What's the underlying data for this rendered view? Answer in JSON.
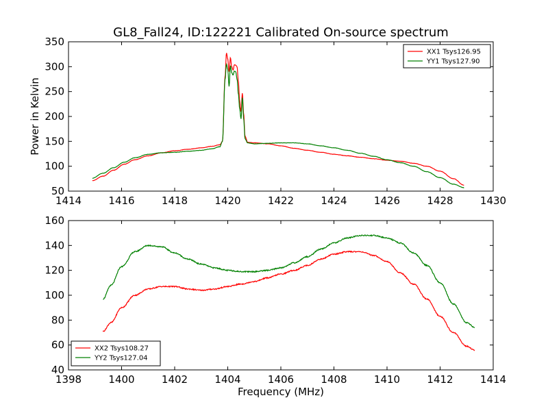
{
  "figure": {
    "title": "GL8_Fall24, ID:122221 Calibrated On-source spectrum",
    "xlabel": "Frequency (MHz)"
  },
  "chart_data": [
    {
      "type": "line",
      "ylabel": "Power in Kelvin",
      "xlim": [
        1414,
        1430
      ],
      "ylim": [
        50,
        350
      ],
      "xticks": [
        1414,
        1416,
        1418,
        1420,
        1422,
        1424,
        1426,
        1428,
        1430
      ],
      "yticks": [
        50,
        100,
        150,
        200,
        250,
        300,
        350
      ],
      "legend": "top-right",
      "grid": false,
      "series": [
        {
          "name": "XX1 Tsys126.95",
          "color": "#ff0000",
          "points": [
            [
              1414.9,
              71
            ],
            [
              1415.3,
              80
            ],
            [
              1415.7,
              92
            ],
            [
              1416.1,
              104
            ],
            [
              1416.5,
              113
            ],
            [
              1417,
              121
            ],
            [
              1417.5,
              127
            ],
            [
              1418,
              131
            ],
            [
              1418.5,
              134
            ],
            [
              1419,
              137
            ],
            [
              1419.4,
              140
            ],
            [
              1419.7,
              143
            ],
            [
              1419.8,
              150
            ],
            [
              1419.9,
              280
            ],
            [
              1419.95,
              328
            ],
            [
              1420.0,
              315
            ],
            [
              1420.05,
              290
            ],
            [
              1420.1,
              318
            ],
            [
              1420.15,
              300
            ],
            [
              1420.2,
              293
            ],
            [
              1420.25,
              304
            ],
            [
              1420.3,
              303
            ],
            [
              1420.35,
              300
            ],
            [
              1420.4,
              270
            ],
            [
              1420.45,
              230
            ],
            [
              1420.5,
              210
            ],
            [
              1420.55,
              247
            ],
            [
              1420.6,
              205
            ],
            [
              1420.65,
              160
            ],
            [
              1420.75,
              148
            ],
            [
              1421,
              147
            ],
            [
              1421.5,
              145
            ],
            [
              1422,
              141
            ],
            [
              1422.5,
              136
            ],
            [
              1423,
              132
            ],
            [
              1423.5,
              128
            ],
            [
              1424,
              124
            ],
            [
              1424.5,
              121
            ],
            [
              1425,
              118
            ],
            [
              1425.5,
              115
            ],
            [
              1426,
              112
            ],
            [
              1426.5,
              110
            ],
            [
              1427,
              106
            ],
            [
              1427.5,
              100
            ],
            [
              1428,
              90
            ],
            [
              1428.5,
              75
            ],
            [
              1428.9,
              62
            ]
          ]
        },
        {
          "name": "YY1 Tsys127.90",
          "color": "#008000",
          "points": [
            [
              1414.9,
              76
            ],
            [
              1415.3,
              86
            ],
            [
              1415.7,
              97
            ],
            [
              1416.1,
              108
            ],
            [
              1416.5,
              117
            ],
            [
              1417,
              124
            ],
            [
              1417.5,
              127
            ],
            [
              1418,
              128
            ],
            [
              1418.5,
              130
            ],
            [
              1419,
              132
            ],
            [
              1419.4,
              135
            ],
            [
              1419.7,
              139
            ],
            [
              1419.8,
              150
            ],
            [
              1419.9,
              275
            ],
            [
              1419.95,
              305
            ],
            [
              1420.0,
              295
            ],
            [
              1420.05,
              260
            ],
            [
              1420.1,
              302
            ],
            [
              1420.15,
              288
            ],
            [
              1420.2,
              283
            ],
            [
              1420.25,
              291
            ],
            [
              1420.3,
              290
            ],
            [
              1420.35,
              275
            ],
            [
              1420.4,
              245
            ],
            [
              1420.45,
              215
            ],
            [
              1420.5,
              195
            ],
            [
              1420.55,
              238
            ],
            [
              1420.6,
              195
            ],
            [
              1420.65,
              155
            ],
            [
              1420.75,
              147
            ],
            [
              1421,
              145
            ],
            [
              1421.5,
              146
            ],
            [
              1422,
              147
            ],
            [
              1422.5,
              147
            ],
            [
              1423,
              145
            ],
            [
              1423.5,
              141
            ],
            [
              1424,
              137
            ],
            [
              1424.5,
              132
            ],
            [
              1425,
              126
            ],
            [
              1425.5,
              120
            ],
            [
              1426,
              113
            ],
            [
              1426.5,
              107
            ],
            [
              1427,
              100
            ],
            [
              1427.5,
              89
            ],
            [
              1428,
              77
            ],
            [
              1428.5,
              64
            ],
            [
              1428.9,
              57
            ]
          ]
        }
      ]
    },
    {
      "type": "line",
      "ylabel": "",
      "xlim": [
        1398,
        1414
      ],
      "ylim": [
        40,
        160
      ],
      "xticks": [
        1398,
        1400,
        1402,
        1404,
        1406,
        1408,
        1410,
        1412,
        1414
      ],
      "yticks": [
        40,
        60,
        80,
        100,
        120,
        140,
        160
      ],
      "legend": "bottom-left",
      "grid": false,
      "series": [
        {
          "name": "XX2 Tsys108.27",
          "color": "#ff0000",
          "points": [
            [
              1399.3,
              71
            ],
            [
              1399.6,
              78
            ],
            [
              1400,
              90
            ],
            [
              1400.5,
              100
            ],
            [
              1401,
              105
            ],
            [
              1401.5,
              107
            ],
            [
              1402,
              107
            ],
            [
              1402.5,
              105
            ],
            [
              1403,
              104
            ],
            [
              1403.5,
              105
            ],
            [
              1404,
              107
            ],
            [
              1404.5,
              109
            ],
            [
              1405,
              111
            ],
            [
              1405.5,
              114
            ],
            [
              1406,
              117
            ],
            [
              1406.5,
              120
            ],
            [
              1407,
              124
            ],
            [
              1407.5,
              129
            ],
            [
              1408,
              133
            ],
            [
              1408.5,
              135
            ],
            [
              1409,
              135
            ],
            [
              1409.5,
              132
            ],
            [
              1410,
              127
            ],
            [
              1410.5,
              118
            ],
            [
              1411,
              109
            ],
            [
              1411.5,
              97
            ],
            [
              1412,
              83
            ],
            [
              1412.5,
              70
            ],
            [
              1413,
              59
            ],
            [
              1413.3,
              56
            ]
          ]
        },
        {
          "name": "YY2 Tsys127.04",
          "color": "#008000",
          "points": [
            [
              1399.3,
              97
            ],
            [
              1399.6,
              108
            ],
            [
              1400,
              123
            ],
            [
              1400.5,
              135
            ],
            [
              1401,
              140
            ],
            [
              1401.5,
              139
            ],
            [
              1402,
              134
            ],
            [
              1402.5,
              129
            ],
            [
              1403,
              125
            ],
            [
              1403.5,
              122
            ],
            [
              1404,
              120
            ],
            [
              1404.5,
              119
            ],
            [
              1405,
              119
            ],
            [
              1405.5,
              120
            ],
            [
              1406,
              122
            ],
            [
              1406.5,
              126
            ],
            [
              1407,
              131
            ],
            [
              1407.5,
              137
            ],
            [
              1408,
              142
            ],
            [
              1408.5,
              146
            ],
            [
              1409,
              148
            ],
            [
              1409.5,
              148
            ],
            [
              1410,
              146
            ],
            [
              1410.5,
              142
            ],
            [
              1411,
              134
            ],
            [
              1411.5,
              124
            ],
            [
              1412,
              110
            ],
            [
              1412.5,
              93
            ],
            [
              1413,
              78
            ],
            [
              1413.3,
              74
            ]
          ]
        }
      ]
    }
  ]
}
